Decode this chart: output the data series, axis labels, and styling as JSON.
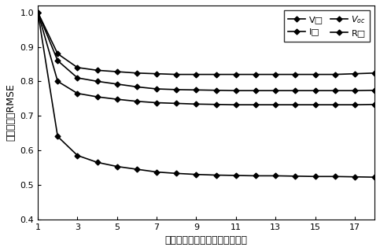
{
  "x": [
    1,
    2,
    3,
    4,
    5,
    6,
    7,
    8,
    9,
    10,
    11,
    12,
    13,
    14,
    15,
    16,
    17,
    18
  ],
  "V_mp": [
    1.0,
    0.88,
    0.84,
    0.832,
    0.828,
    0.824,
    0.822,
    0.82,
    0.82,
    0.82,
    0.82,
    0.82,
    0.82,
    0.82,
    0.82,
    0.82,
    0.822,
    0.824
  ],
  "I_mp": [
    1.0,
    0.86,
    0.81,
    0.8,
    0.792,
    0.784,
    0.778,
    0.776,
    0.775,
    0.774,
    0.773,
    0.773,
    0.773,
    0.773,
    0.773,
    0.773,
    0.773,
    0.774
  ],
  "V_oc": [
    1.0,
    0.8,
    0.765,
    0.755,
    0.748,
    0.742,
    0.738,
    0.736,
    0.734,
    0.733,
    0.732,
    0.732,
    0.732,
    0.732,
    0.732,
    0.732,
    0.732,
    0.733
  ],
  "R": [
    1.0,
    0.64,
    0.585,
    0.565,
    0.553,
    0.545,
    0.537,
    0.533,
    0.53,
    0.528,
    0.527,
    0.526,
    0.526,
    0.525,
    0.524,
    0.524,
    0.523,
    0.522
  ],
  "xlim": [
    1,
    18
  ],
  "ylim": [
    0.4,
    1.02
  ],
  "xticks": [
    1,
    3,
    5,
    7,
    9,
    11,
    13,
    15,
    17
  ],
  "yticks": [
    0.4,
    0.5,
    0.6,
    0.7,
    0.8,
    0.9,
    1.0
  ],
  "xlabel": "不同辐照度水平的拟合样本数量",
  "ylabel": "归一化平均RMSE",
  "legend_labels": [
    "V□",
    "I□",
    "V_oc",
    "R□"
  ],
  "line_color": "#000000",
  "marker": "D",
  "markersize": 3.5,
  "linewidth": 1.2
}
